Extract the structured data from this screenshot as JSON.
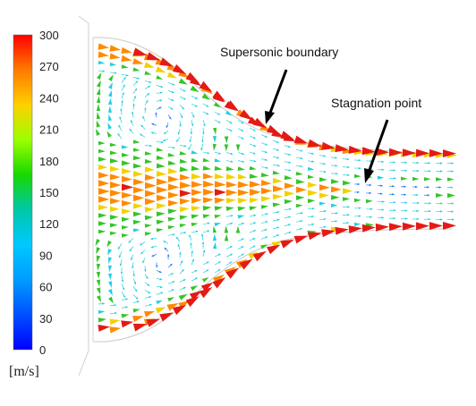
{
  "colorbar": {
    "ticks": [
      "300",
      "270",
      "240",
      "210",
      "180",
      "150",
      "120",
      "90",
      "60",
      "30",
      "0"
    ],
    "unit": "[m/s]",
    "stops": [
      "#ff0000",
      "#ff7a00",
      "#ffd000",
      "#9cff00",
      "#17d800",
      "#00c8a8",
      "#00c8ff",
      "#009cff",
      "#0050ff",
      "#0000ff"
    ]
  },
  "annotations": {
    "supersonic": "Supersonic boundary",
    "stagnation": "Stagnation point"
  },
  "palette": {
    "low": "#1b7bff",
    "cyan": "#20d0e0",
    "green": "#34c52a",
    "yellow": "#f2d100",
    "orange": "#ff8a00",
    "red": "#e41a14",
    "outline": "#c9c9c9",
    "grid": "#bdbdbd"
  }
}
